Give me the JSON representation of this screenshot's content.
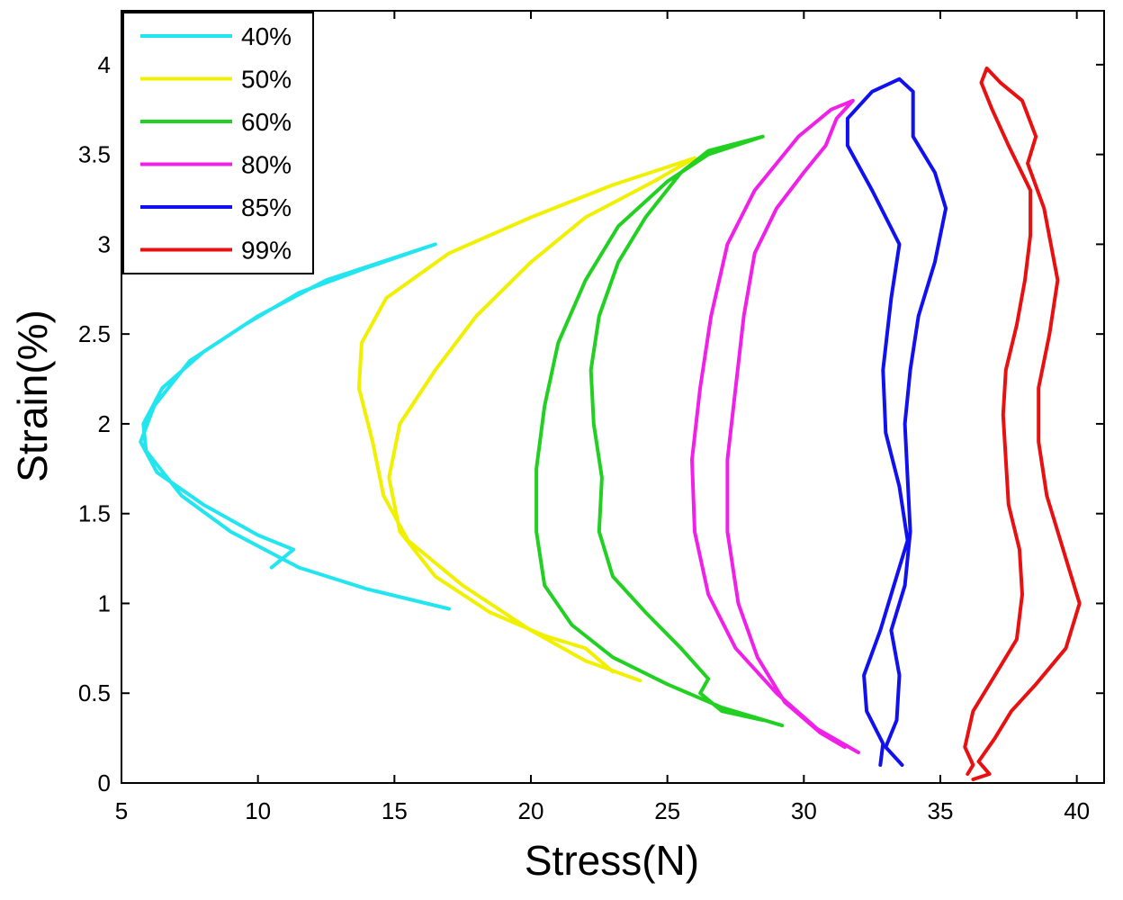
{
  "chart_data": {
    "type": "line",
    "title": "",
    "xlabel": "Stress(N)",
    "ylabel": "Strain(%)",
    "xlim": [
      5,
      41
    ],
    "ylim": [
      0,
      4.3
    ],
    "xticks": [
      5,
      10,
      15,
      20,
      25,
      30,
      35,
      40
    ],
    "yticks": [
      0,
      0.5,
      1,
      1.5,
      2,
      2.5,
      3,
      3.5,
      4
    ],
    "xtick_labels": [
      "5",
      "10",
      "15",
      "20",
      "25",
      "30",
      "35",
      "40"
    ],
    "ytick_labels": [
      "0",
      "0.5",
      "1",
      "1.5",
      "2",
      "2.5",
      "3",
      "3.5",
      "4"
    ],
    "grid": false,
    "legend_position": "top-left",
    "series": [
      {
        "name": "40%",
        "color": "#22e5f0",
        "points": [
          [
            17.0,
            0.97
          ],
          [
            14.0,
            1.08
          ],
          [
            11.5,
            1.2
          ],
          [
            9.0,
            1.4
          ],
          [
            7.2,
            1.6
          ],
          [
            5.9,
            1.85
          ],
          [
            5.8,
            2.0
          ],
          [
            6.5,
            2.2
          ],
          [
            8.0,
            2.4
          ],
          [
            10.0,
            2.6
          ],
          [
            12.5,
            2.8
          ],
          [
            14.5,
            2.9
          ],
          [
            16.5,
            3.0
          ],
          [
            14.0,
            2.87
          ],
          [
            11.5,
            2.73
          ],
          [
            9.5,
            2.55
          ],
          [
            7.5,
            2.35
          ],
          [
            6.2,
            2.1
          ],
          [
            5.7,
            1.9
          ],
          [
            6.3,
            1.73
          ],
          [
            8.0,
            1.55
          ],
          [
            10.0,
            1.38
          ],
          [
            11.3,
            1.3
          ],
          [
            10.5,
            1.2
          ]
        ]
      },
      {
        "name": "50%",
        "color": "#f0f000",
        "points": [
          [
            24.0,
            0.57
          ],
          [
            22.0,
            0.68
          ],
          [
            20.0,
            0.85
          ],
          [
            17.5,
            1.1
          ],
          [
            15.5,
            1.35
          ],
          [
            14.6,
            1.6
          ],
          [
            14.2,
            1.9
          ],
          [
            13.7,
            2.2
          ],
          [
            13.8,
            2.45
          ],
          [
            14.7,
            2.7
          ],
          [
            17.0,
            2.95
          ],
          [
            20.0,
            3.15
          ],
          [
            23.0,
            3.33
          ],
          [
            26.0,
            3.48
          ],
          [
            24.5,
            3.35
          ],
          [
            22.0,
            3.15
          ],
          [
            20.0,
            2.9
          ],
          [
            18.0,
            2.6
          ],
          [
            16.5,
            2.3
          ],
          [
            15.2,
            2.0
          ],
          [
            14.8,
            1.7
          ],
          [
            15.2,
            1.4
          ],
          [
            16.5,
            1.15
          ],
          [
            18.5,
            0.95
          ],
          [
            20.5,
            0.82
          ],
          [
            22.0,
            0.75
          ],
          [
            23.0,
            0.62
          ]
        ]
      },
      {
        "name": "60%",
        "color": "#22d022",
        "points": [
          [
            29.2,
            0.32
          ],
          [
            27.0,
            0.42
          ],
          [
            25.0,
            0.55
          ],
          [
            23.0,
            0.7
          ],
          [
            21.5,
            0.88
          ],
          [
            20.5,
            1.1
          ],
          [
            20.2,
            1.4
          ],
          [
            20.2,
            1.75
          ],
          [
            20.5,
            2.1
          ],
          [
            21.0,
            2.45
          ],
          [
            22.0,
            2.8
          ],
          [
            23.2,
            3.1
          ],
          [
            25.0,
            3.35
          ],
          [
            26.5,
            3.5
          ],
          [
            28.5,
            3.6
          ],
          [
            26.5,
            3.52
          ],
          [
            25.5,
            3.4
          ],
          [
            24.2,
            3.15
          ],
          [
            23.2,
            2.9
          ],
          [
            22.5,
            2.6
          ],
          [
            22.2,
            2.3
          ],
          [
            22.3,
            2.0
          ],
          [
            22.6,
            1.7
          ],
          [
            22.5,
            1.4
          ],
          [
            23.0,
            1.15
          ],
          [
            24.2,
            0.95
          ],
          [
            25.5,
            0.75
          ],
          [
            26.5,
            0.58
          ],
          [
            26.2,
            0.5
          ],
          [
            27.0,
            0.4
          ],
          [
            28.5,
            0.35
          ]
        ]
      },
      {
        "name": "80%",
        "color": "#f020e8",
        "points": [
          [
            32.0,
            0.17
          ],
          [
            30.5,
            0.3
          ],
          [
            29.0,
            0.5
          ],
          [
            27.5,
            0.75
          ],
          [
            26.5,
            1.05
          ],
          [
            26.0,
            1.4
          ],
          [
            25.9,
            1.8
          ],
          [
            26.2,
            2.2
          ],
          [
            26.6,
            2.6
          ],
          [
            27.2,
            3.0
          ],
          [
            28.2,
            3.3
          ],
          [
            29.8,
            3.6
          ],
          [
            31.0,
            3.75
          ],
          [
            31.8,
            3.8
          ],
          [
            31.2,
            3.7
          ],
          [
            30.8,
            3.55
          ],
          [
            30.0,
            3.4
          ],
          [
            29.0,
            3.2
          ],
          [
            28.2,
            2.95
          ],
          [
            27.8,
            2.6
          ],
          [
            27.5,
            2.2
          ],
          [
            27.2,
            1.8
          ],
          [
            27.2,
            1.4
          ],
          [
            27.6,
            1.0
          ],
          [
            28.3,
            0.7
          ],
          [
            29.3,
            0.45
          ],
          [
            30.6,
            0.28
          ],
          [
            31.5,
            0.2
          ]
        ]
      },
      {
        "name": "85%",
        "color": "#1010f0",
        "points": [
          [
            32.8,
            0.1
          ],
          [
            32.9,
            0.22
          ],
          [
            32.3,
            0.4
          ],
          [
            32.2,
            0.6
          ],
          [
            32.8,
            0.85
          ],
          [
            33.3,
            1.1
          ],
          [
            33.8,
            1.35
          ],
          [
            33.5,
            1.65
          ],
          [
            33.0,
            1.95
          ],
          [
            32.9,
            2.3
          ],
          [
            33.2,
            2.7
          ],
          [
            33.5,
            3.0
          ],
          [
            32.5,
            3.3
          ],
          [
            31.6,
            3.55
          ],
          [
            31.6,
            3.7
          ],
          [
            32.5,
            3.85
          ],
          [
            33.5,
            3.92
          ],
          [
            34.0,
            3.85
          ],
          [
            34.0,
            3.6
          ],
          [
            34.8,
            3.4
          ],
          [
            35.2,
            3.2
          ],
          [
            34.8,
            2.9
          ],
          [
            34.2,
            2.6
          ],
          [
            33.9,
            2.3
          ],
          [
            33.7,
            2.0
          ],
          [
            33.8,
            1.7
          ],
          [
            33.9,
            1.4
          ],
          [
            33.7,
            1.1
          ],
          [
            33.2,
            0.85
          ],
          [
            33.5,
            0.6
          ],
          [
            33.4,
            0.35
          ],
          [
            33.0,
            0.2
          ],
          [
            33.6,
            0.1
          ]
        ]
      },
      {
        "name": "99%",
        "color": "#e81010",
        "points": [
          [
            36.0,
            0.05
          ],
          [
            36.2,
            0.1
          ],
          [
            35.9,
            0.2
          ],
          [
            36.2,
            0.4
          ],
          [
            37.0,
            0.6
          ],
          [
            37.8,
            0.8
          ],
          [
            38.0,
            1.05
          ],
          [
            37.9,
            1.3
          ],
          [
            37.5,
            1.55
          ],
          [
            37.4,
            1.8
          ],
          [
            37.3,
            2.05
          ],
          [
            37.4,
            2.3
          ],
          [
            37.8,
            2.55
          ],
          [
            38.1,
            2.8
          ],
          [
            38.3,
            3.05
          ],
          [
            38.3,
            3.3
          ],
          [
            37.5,
            3.55
          ],
          [
            36.9,
            3.75
          ],
          [
            36.5,
            3.9
          ],
          [
            36.7,
            3.98
          ],
          [
            37.2,
            3.9
          ],
          [
            38.0,
            3.8
          ],
          [
            38.5,
            3.6
          ],
          [
            38.2,
            3.45
          ],
          [
            38.8,
            3.2
          ],
          [
            39.3,
            2.8
          ],
          [
            39.0,
            2.5
          ],
          [
            38.6,
            2.2
          ],
          [
            38.6,
            1.9
          ],
          [
            38.9,
            1.6
          ],
          [
            39.5,
            1.3
          ],
          [
            40.1,
            1.0
          ],
          [
            39.6,
            0.75
          ],
          [
            38.5,
            0.55
          ],
          [
            37.6,
            0.4
          ],
          [
            37.0,
            0.25
          ],
          [
            36.4,
            0.12
          ],
          [
            36.8,
            0.05
          ],
          [
            36.2,
            0.02
          ]
        ]
      }
    ]
  }
}
